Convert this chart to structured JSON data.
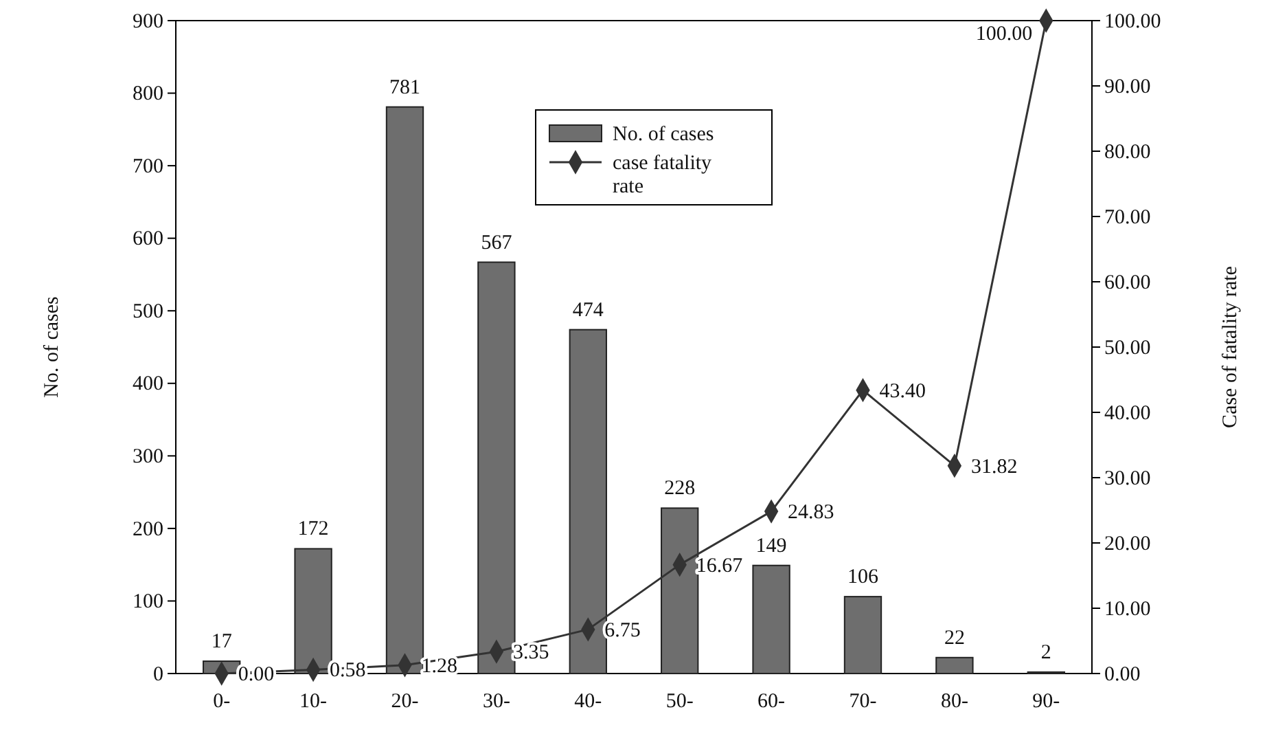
{
  "chart_data": {
    "type": "bar",
    "categories": [
      "0-",
      "10-",
      "20-",
      "30-",
      "40-",
      "50-",
      "60-",
      "70-",
      "80-",
      "90-"
    ],
    "ylabel": "No. of cases",
    "y2label": "Case of fatality rate",
    "ylim": [
      0,
      900
    ],
    "yticks": [
      0,
      100,
      200,
      300,
      400,
      500,
      600,
      700,
      800,
      900
    ],
    "y2lim": [
      0,
      100
    ],
    "y2ticks": [
      {
        "value": 0,
        "label": "0.00"
      },
      {
        "value": 10,
        "label": "10.00"
      },
      {
        "value": 20,
        "label": "20.00"
      },
      {
        "value": 30,
        "label": "30.00"
      },
      {
        "value": 40,
        "label": "40.00"
      },
      {
        "value": 50,
        "label": "50.00"
      },
      {
        "value": 60,
        "label": "60.00"
      },
      {
        "value": 70,
        "label": "70.00"
      },
      {
        "value": 80,
        "label": "80.00"
      },
      {
        "value": 90,
        "label": "90.00"
      },
      {
        "value": 100,
        "label": "100.00"
      }
    ],
    "legend": "top",
    "grid": false,
    "series": [
      {
        "name": "No. of cases",
        "type": "bar",
        "color": "#6e6e6e",
        "values": [
          17,
          172,
          781,
          567,
          474,
          228,
          149,
          106,
          22,
          2
        ],
        "value_labels": [
          "17",
          "172",
          "781",
          "567",
          "474",
          "228",
          "149",
          "106",
          "22",
          "2"
        ]
      },
      {
        "name": "case fatality rate",
        "type": "line",
        "axis": "y2",
        "color": "#333333",
        "marker": "diamond",
        "values": [
          0,
          0.58,
          1.28,
          3.35,
          6.75,
          16.67,
          24.83,
          43.4,
          31.82,
          100
        ],
        "value_labels": [
          "0.00",
          "0.58",
          "1.28",
          "3.35",
          "6.75",
          "16.67",
          "24.83",
          "43.40",
          "31.82",
          "100.00"
        ]
      }
    ]
  }
}
